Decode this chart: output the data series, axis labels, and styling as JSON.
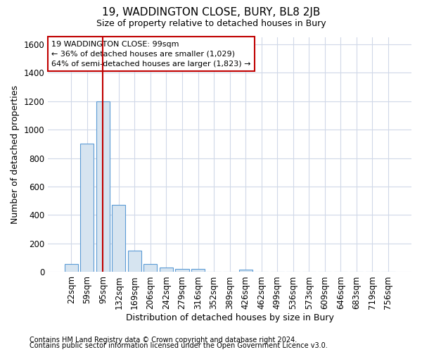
{
  "title": "19, WADDINGTON CLOSE, BURY, BL8 2JB",
  "subtitle": "Size of property relative to detached houses in Bury",
  "xlabel": "Distribution of detached houses by size in Bury",
  "ylabel": "Number of detached properties",
  "footnote1": "Contains HM Land Registry data © Crown copyright and database right 2024.",
  "footnote2": "Contains public sector information licensed under the Open Government Licence v3.0.",
  "bin_labels": [
    "22sqm",
    "59sqm",
    "95sqm",
    "132sqm",
    "169sqm",
    "206sqm",
    "242sqm",
    "279sqm",
    "316sqm",
    "352sqm",
    "389sqm",
    "426sqm",
    "462sqm",
    "499sqm",
    "536sqm",
    "573sqm",
    "609sqm",
    "646sqm",
    "683sqm",
    "719sqm",
    "756sqm"
  ],
  "bar_values": [
    55,
    900,
    1200,
    470,
    150,
    58,
    30,
    20,
    20,
    0,
    0,
    18,
    0,
    0,
    0,
    0,
    0,
    0,
    0,
    0,
    0
  ],
  "bar_color": "#d6e4f0",
  "bar_edge_color": "#5b9bd5",
  "vline_x": 2.0,
  "vline_color": "#c00000",
  "annotation_line1": "19 WADDINGTON CLOSE: 99sqm",
  "annotation_line2": "← 36% of detached houses are smaller (1,029)",
  "annotation_line3": "64% of semi-detached houses are larger (1,823) →",
  "annotation_box_color": "#ffffff",
  "annotation_box_edge_color": "#c00000",
  "ylim": [
    0,
    1650
  ],
  "yticks": [
    0,
    200,
    400,
    600,
    800,
    1000,
    1200,
    1400,
    1600
  ],
  "background_color": "#ffffff",
  "plot_bg_color": "#ffffff",
  "grid_color": "#d0d8e8",
  "title_fontsize": 11,
  "subtitle_fontsize": 9,
  "axis_label_fontsize": 9,
  "tick_fontsize": 8.5,
  "footnote_fontsize": 7
}
